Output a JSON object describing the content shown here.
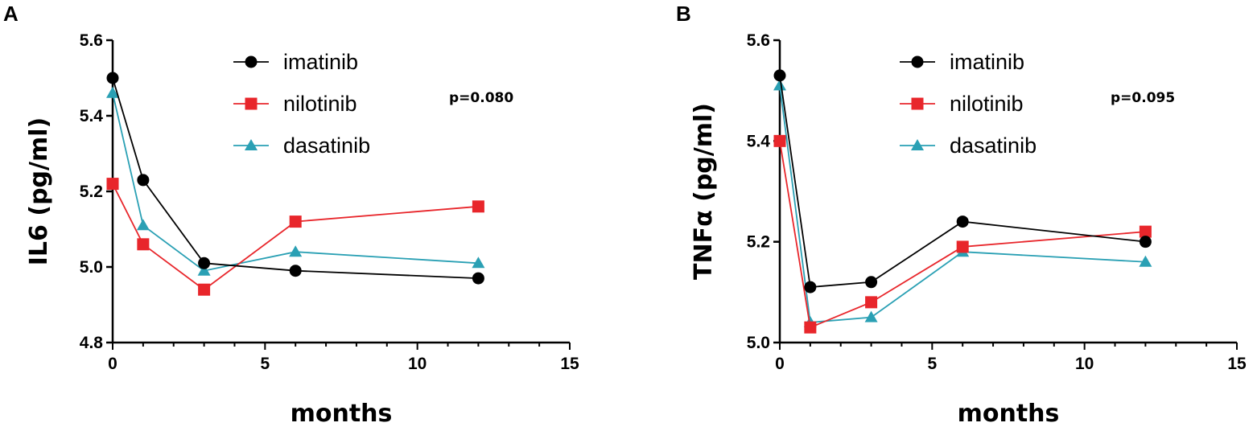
{
  "colors": {
    "imatinib": "#000000",
    "nilotinib": "#e8262b",
    "dasatinib": "#2aa0b4",
    "axis": "#000000"
  },
  "chart_data": [
    {
      "panel": "A",
      "type": "line",
      "xlabel": "months",
      "ylabel": "IL6 (pg/ml)",
      "xlim": [
        0,
        15
      ],
      "ylim": [
        4.8,
        5.6
      ],
      "xticks": [
        0,
        5,
        10,
        15
      ],
      "yticks": [
        4.8,
        5.0,
        5.2,
        5.4,
        5.6
      ],
      "ytick_labels": [
        "4.8",
        "5.0",
        "5.2",
        "5.4",
        "5.6"
      ],
      "annotation": "p=0.080",
      "legend_position": "top-center",
      "x": [
        0,
        1,
        3,
        6,
        12
      ],
      "series": [
        {
          "name": "imatinib",
          "marker": "circle",
          "values": [
            5.5,
            5.23,
            5.01,
            4.99,
            4.97
          ]
        },
        {
          "name": "nilotinib",
          "marker": "square",
          "values": [
            5.22,
            5.06,
            4.94,
            5.12,
            5.16
          ]
        },
        {
          "name": "dasatinib",
          "marker": "triangle",
          "values": [
            5.46,
            5.11,
            4.99,
            5.04,
            5.01
          ]
        }
      ]
    },
    {
      "panel": "B",
      "type": "line",
      "xlabel": "months",
      "ylabel": "TNFα (pg/ml)",
      "xlim": [
        0,
        15
      ],
      "ylim": [
        5.0,
        5.6
      ],
      "xticks": [
        0,
        5,
        10,
        15
      ],
      "yticks": [
        5.0,
        5.2,
        5.4,
        5.6
      ],
      "ytick_labels": [
        "5.0",
        "5.2",
        "5.4",
        "5.6"
      ],
      "annotation": "p=0.095",
      "legend_position": "top-center",
      "x": [
        0,
        1,
        3,
        6,
        12
      ],
      "series": [
        {
          "name": "imatinib",
          "marker": "circle",
          "values": [
            5.53,
            5.11,
            5.12,
            5.24,
            5.2
          ]
        },
        {
          "name": "nilotinib",
          "marker": "square",
          "values": [
            5.4,
            5.03,
            5.08,
            5.19,
            5.22
          ]
        },
        {
          "name": "dasatinib",
          "marker": "triangle",
          "values": [
            5.51,
            5.04,
            5.05,
            5.18,
            5.16
          ]
        }
      ]
    }
  ]
}
